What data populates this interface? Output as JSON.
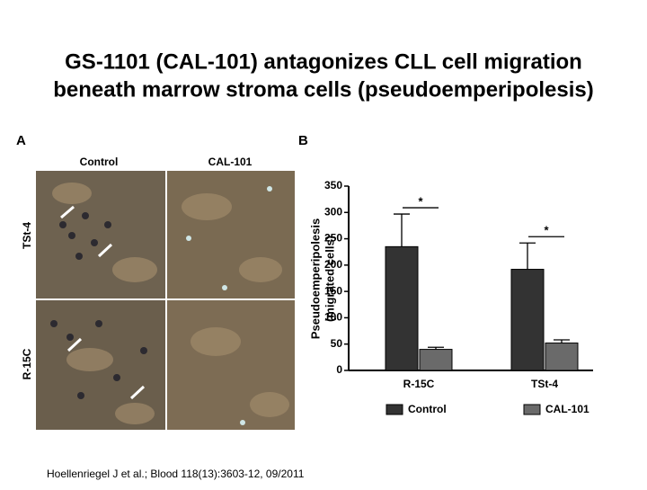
{
  "slide": {
    "title": [
      "GS-1101 (CAL-101) antagonizes CLL cell migration",
      "beneath marrow stroma cells (pseudoemperipolesis)"
    ],
    "citation": "Hoellenriegel J et al.; Blood 118(13):3603-12, 09/2011"
  },
  "panel_a": {
    "label": "A",
    "columns": [
      "Control",
      "CAL-101"
    ],
    "rows": [
      "TSt-4",
      "R-15C"
    ]
  },
  "chart_data": {
    "type": "bar",
    "panel_label": "B",
    "ylabel": [
      "Pseudoemperipolesis",
      "(migrated cells)"
    ],
    "categories": [
      "R-15C",
      "TSt-4"
    ],
    "series": [
      {
        "name": "Control",
        "color": "#333333",
        "values": [
          235,
          192
        ],
        "errors": [
          62,
          50
        ]
      },
      {
        "name": "CAL-101",
        "color": "#6a6a6a",
        "values": [
          40,
          52
        ],
        "errors": [
          4,
          6
        ]
      }
    ],
    "ylim": [
      0,
      350
    ],
    "yticks": [
      0,
      50,
      100,
      150,
      200,
      250,
      300,
      350
    ],
    "annotations": [
      "*",
      "*"
    ],
    "legend": "bottom"
  }
}
